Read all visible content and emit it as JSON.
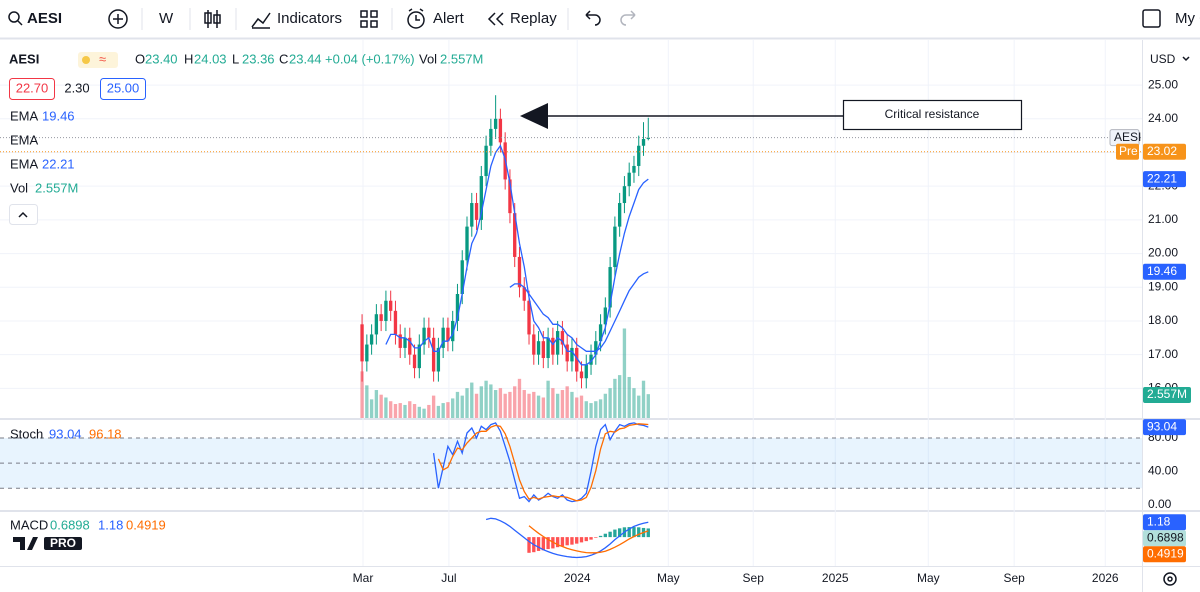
{
  "toolbar": {
    "symbol": "AESI",
    "interval": "W",
    "indicators": "Indicators",
    "alert": "Alert",
    "replay": "Replay",
    "account": "My C"
  },
  "legend": {
    "symbol": "AESI",
    "fields": [
      {
        "k": "O",
        "v": "23.40"
      },
      {
        "k": "H",
        "v": "24.03"
      },
      {
        "k": "L",
        "v": "23.36"
      },
      {
        "k": "C",
        "v": "23.44"
      }
    ],
    "change": "+0.04 (+0.17%)",
    "vol": "Vol",
    "vol_value": "2.557M",
    "bid": "22.70",
    "spread": "2.30",
    "ask": "25.00"
  },
  "currency": "USD",
  "annotation": "Critical resistance",
  "logo": "PRO",
  "chart_data": [
    {
      "type": "candlestick",
      "x": [
        0,
        1,
        2,
        3,
        4,
        5,
        6,
        7,
        8,
        9,
        10,
        11,
        12,
        13,
        14,
        15,
        16,
        17,
        18,
        19,
        20,
        21,
        22,
        23,
        24,
        25,
        26,
        27,
        28,
        29,
        30,
        31,
        32,
        33,
        34,
        35,
        36,
        37,
        38,
        39,
        40,
        41,
        42,
        43,
        44,
        45,
        46,
        47,
        48,
        49,
        50,
        51,
        52,
        53,
        54,
        55,
        56,
        57,
        58,
        59,
        60
      ],
      "open": [
        17.9,
        16.8,
        17.3,
        17.6,
        18.2,
        18.0,
        18.6,
        18.3,
        17.6,
        17.2,
        17.5,
        17.0,
        16.6,
        17.3,
        17.8,
        17.5,
        16.5,
        17.2,
        17.8,
        17.4,
        18.0,
        18.8,
        19.8,
        20.8,
        21.5,
        21.0,
        22.3,
        23.2,
        23.7,
        24.0,
        23.3,
        22.2,
        21.2,
        19.9,
        19.0,
        18.6,
        17.6,
        17.0,
        17.4,
        16.9,
        17.5,
        17.0,
        17.7,
        17.3,
        16.8,
        17.2,
        16.5,
        16.3,
        16.7,
        17.0,
        17.4,
        17.9,
        18.4,
        19.6,
        20.8,
        21.5,
        22.0,
        22.4,
        22.6,
        23.2,
        23.4
      ],
      "high": [
        18.2,
        17.6,
        17.9,
        18.5,
        18.5,
        18.9,
        18.9,
        18.6,
        17.9,
        17.8,
        17.8,
        17.3,
        17.6,
        18.1,
        18.1,
        17.8,
        17.5,
        18.1,
        18.1,
        18.3,
        19.1,
        20.1,
        21.1,
        21.8,
        21.8,
        22.6,
        23.5,
        24.0,
        24.7,
        24.3,
        23.6,
        22.5,
        21.5,
        20.2,
        19.3,
        18.9,
        17.9,
        17.7,
        17.7,
        17.8,
        17.8,
        18.0,
        18.0,
        17.6,
        17.5,
        17.5,
        16.8,
        17.0,
        17.3,
        17.7,
        18.2,
        18.7,
        19.9,
        21.1,
        21.8,
        22.3,
        22.7,
        22.9,
        23.5,
        23.9,
        24.03
      ],
      "low": [
        16.2,
        16.5,
        17.0,
        17.3,
        17.7,
        17.7,
        18.0,
        17.3,
        16.9,
        16.9,
        16.7,
        16.3,
        16.3,
        17.0,
        17.2,
        16.2,
        16.2,
        16.9,
        17.1,
        17.1,
        17.7,
        18.5,
        19.5,
        20.5,
        20.7,
        20.7,
        22.0,
        22.9,
        23.4,
        23.0,
        21.9,
        20.9,
        19.6,
        18.7,
        18.3,
        17.3,
        16.7,
        16.7,
        16.6,
        16.6,
        16.7,
        16.7,
        17.0,
        16.5,
        16.5,
        16.2,
        16.0,
        16.0,
        16.4,
        16.7,
        17.1,
        17.6,
        18.1,
        19.3,
        20.5,
        21.2,
        21.7,
        22.1,
        22.3,
        22.9,
        23.36
      ],
      "close": [
        16.8,
        17.3,
        17.6,
        18.2,
        18.0,
        18.6,
        18.3,
        17.6,
        17.2,
        17.5,
        17.0,
        16.6,
        17.3,
        17.8,
        17.5,
        16.5,
        17.2,
        17.8,
        17.4,
        18.0,
        18.8,
        19.8,
        20.8,
        21.5,
        21.0,
        22.3,
        23.2,
        23.7,
        24.0,
        23.3,
        22.2,
        21.2,
        19.9,
        19.0,
        18.6,
        17.6,
        17.0,
        17.4,
        16.9,
        17.5,
        17.0,
        17.7,
        17.3,
        16.8,
        17.2,
        16.5,
        16.3,
        16.7,
        17.0,
        17.4,
        17.9,
        18.4,
        19.6,
        20.8,
        21.5,
        22.0,
        22.4,
        22.6,
        23.2,
        23.4,
        23.44
      ],
      "up_color": "#089981",
      "down_color": "#f23645",
      "xlim": [
        -75.9,
        163.5
      ],
      "xticks": [
        {
          "value": 0.2,
          "label": "Mar"
        },
        {
          "value": 18.2,
          "label": "Jul"
        },
        {
          "value": 45.1,
          "label": "2024"
        },
        {
          "value": 64.2,
          "label": "May"
        },
        {
          "value": 82,
          "label": "Sep"
        },
        {
          "value": 99.2,
          "label": "2025"
        },
        {
          "value": 118.7,
          "label": "May"
        },
        {
          "value": 136.7,
          "label": "Sep"
        },
        {
          "value": 155.8,
          "label": "2026"
        }
      ],
      "ylim": [
        15.12,
        26.19
      ],
      "yticks": [
        {
          "value": 16,
          "label": "16.00"
        },
        {
          "value": 17,
          "label": "17.00"
        },
        {
          "value": 18,
          "label": "18.00"
        },
        {
          "value": 19,
          "label": "19.00"
        },
        {
          "value": 20,
          "label": "20.00"
        },
        {
          "value": 21,
          "label": "21.00"
        },
        {
          "value": 22,
          "label": "22.00"
        },
        {
          "value": 23,
          "label": "23.00"
        },
        {
          "value": 24,
          "label": "24.00"
        },
        {
          "value": 25,
          "label": "25.00"
        }
      ],
      "grid": true,
      "series": [
        {
          "name": "EMA",
          "color": "#2962ff",
          "values": [
            null,
            null,
            null,
            null,
            null,
            null,
            null,
            null,
            null,
            null,
            null,
            null,
            null,
            null,
            null,
            null,
            null,
            null,
            null,
            null,
            null,
            null,
            null,
            null,
            null,
            null,
            null,
            null,
            null,
            null,
            null,
            19.0,
            19.1,
            19.1,
            19.0,
            18.8,
            18.6,
            18.4,
            18.2,
            18.1,
            17.9,
            17.9,
            17.8,
            17.6,
            17.5,
            17.3,
            17.2,
            17.1,
            17.1,
            17.1,
            17.2,
            17.4,
            17.7,
            18.0,
            18.3,
            18.6,
            18.9,
            19.1,
            19.3,
            19.4,
            19.46
          ]
        },
        {
          "name": "EMA",
          "color": "#2962ff",
          "values": [
            null,
            null,
            null,
            null,
            null,
            17.3,
            17.6,
            17.6,
            17.5,
            17.5,
            17.4,
            17.2,
            17.2,
            17.4,
            17.5,
            17.1,
            17.1,
            17.4,
            17.4,
            17.6,
            18.1,
            18.8,
            19.6,
            20.3,
            20.6,
            21.2,
            21.9,
            22.6,
            23.0,
            23.2,
            22.8,
            22.1,
            21.2,
            20.3,
            19.6,
            18.7,
            18.0,
            17.8,
            17.5,
            17.5,
            17.3,
            17.5,
            17.4,
            17.1,
            17.1,
            16.9,
            16.7,
            16.7,
            16.8,
            17.0,
            17.4,
            17.8,
            18.5,
            19.3,
            20.0,
            20.6,
            21.1,
            21.5,
            21.9,
            22.1,
            22.21
          ]
        }
      ],
      "hidden_series": [
        {
          "name": "EMA"
        }
      ],
      "volume": {
        "name": "Vol",
        "vlim": [
          0,
          40
        ],
        "up_color": "rgba(8,153,129,0.45)",
        "down_color": "rgba(242,54,69,0.45)",
        "values": [
          5.0,
          3.5,
          2.0,
          3.0,
          2.5,
          2.2,
          1.8,
          1.5,
          1.6,
          1.4,
          1.8,
          1.5,
          1.2,
          1.0,
          1.4,
          2.4,
          1.3,
          1.6,
          1.7,
          2.1,
          2.8,
          2.4,
          3.2,
          3.8,
          2.6,
          3.4,
          4.0,
          3.6,
          3.0,
          3.2,
          2.6,
          2.8,
          3.4,
          4.2,
          3.0,
          2.6,
          2.8,
          2.4,
          2.2,
          4.0,
          3.2,
          2.6,
          3.0,
          3.4,
          2.8,
          2.2,
          2.4,
          1.8,
          1.6,
          1.8,
          2.0,
          2.6,
          3.2,
          4.2,
          4.6,
          9.6,
          4.4,
          3.2,
          2.4,
          4.0,
          2.557
        ],
        "value_labels": [
          null,
          null,
          null,
          null,
          null,
          null,
          null,
          null,
          null,
          null,
          null,
          null,
          null,
          null,
          null,
          null,
          null,
          null,
          null,
          null,
          null,
          null,
          null,
          null,
          null,
          null,
          null,
          null,
          null,
          null,
          null,
          null,
          null,
          null,
          null,
          null,
          null,
          null,
          null,
          null,
          null,
          null,
          null,
          null,
          null,
          null,
          null,
          null,
          null,
          null,
          null,
          null,
          null,
          null,
          null,
          null,
          null,
          null,
          null,
          null,
          "2.557M"
        ]
      },
      "last_price": {
        "label": "AESI",
        "value": 23.44
      },
      "premarket": {
        "label": "Pre",
        "value": 23.02,
        "color": "#f7931a"
      }
    },
    {
      "type": "line",
      "title": "Stoch",
      "ylim": [
        -6,
        101.5
      ],
      "yticks": [
        {
          "value": 0,
          "label": "0.00"
        },
        {
          "value": 40,
          "label": "40.00"
        },
        {
          "value": 80,
          "label": "80.00"
        }
      ],
      "band": [
        20,
        80
      ],
      "levels": [
        80,
        50,
        20
      ],
      "series": [
        {
          "color": "#2962ff",
          "values": [
            null,
            null,
            null,
            null,
            null,
            null,
            null,
            null,
            null,
            null,
            null,
            null,
            null,
            null,
            null,
            62,
            20,
            45,
            70,
            60,
            76,
            62,
            86,
            92,
            80,
            94,
            90,
            96,
            98,
            88,
            70,
            52,
            30,
            8,
            10,
            4,
            12,
            6,
            9,
            14,
            10,
            8,
            12,
            6,
            4,
            5,
            8,
            14,
            40,
            70,
            90,
            96,
            78,
            88,
            96,
            94,
            97,
            98,
            96,
            95,
            93.04
          ]
        },
        {
          "color": "#ff6d00",
          "values": [
            null,
            null,
            null,
            null,
            null,
            null,
            null,
            null,
            null,
            null,
            null,
            null,
            null,
            null,
            null,
            null,
            55,
            42,
            45,
            58,
            68,
            66,
            74,
            80,
            86,
            88,
            88,
            93,
            95,
            94,
            85,
            70,
            50,
            30,
            16,
            7,
            9,
            7,
            9,
            10,
            11,
            10,
            10,
            9,
            7,
            5,
            6,
            9,
            21,
            41,
            67,
            85,
            88,
            87,
            91,
            92,
            95,
            96,
            97,
            96.5,
            96.18
          ]
        }
      ]
    },
    {
      "type": "macd",
      "title": "MACD",
      "ylim": [
        -2.3,
        2.0
      ],
      "histogram": {
        "up_color": "#26a69a",
        "down_color": "#ff5252",
        "values": [
          null,
          null,
          null,
          null,
          null,
          null,
          null,
          null,
          null,
          null,
          null,
          null,
          null,
          null,
          null,
          null,
          null,
          null,
          null,
          null,
          null,
          null,
          null,
          null,
          null,
          null,
          null,
          null,
          null,
          null,
          null,
          null,
          null,
          null,
          null,
          -1.25,
          -1.2,
          -1.1,
          -1.05,
          -0.95,
          -0.9,
          -0.8,
          -0.73,
          -0.65,
          -0.6,
          -0.52,
          -0.42,
          -0.32,
          -0.2,
          -0.05,
          0.1,
          0.27,
          0.43,
          0.6,
          0.7,
          0.78,
          0.8,
          0.8,
          0.78,
          0.73,
          0.6898
        ]
      },
      "series": [
        {
          "color": "#2962ff",
          "values": [
            null,
            null,
            null,
            null,
            null,
            null,
            null,
            null,
            null,
            null,
            null,
            null,
            null,
            null,
            null,
            null,
            null,
            null,
            null,
            null,
            null,
            null,
            null,
            null,
            null,
            null,
            1.4,
            1.5,
            1.45,
            1.3,
            1.1,
            0.85,
            0.55,
            0.25,
            -0.05,
            -0.35,
            -0.6,
            -0.8,
            -1.0,
            -1.15,
            -1.3,
            -1.4,
            -1.48,
            -1.55,
            -1.6,
            -1.62,
            -1.6,
            -1.55,
            -1.45,
            -1.3,
            -1.1,
            -0.85,
            -0.55,
            -0.2,
            0.1,
            0.4,
            0.65,
            0.85,
            1.0,
            1.1,
            1.18
          ]
        },
        {
          "color": "#ff6d00",
          "values": [
            null,
            null,
            null,
            null,
            null,
            null,
            null,
            null,
            null,
            null,
            null,
            null,
            null,
            null,
            null,
            null,
            null,
            null,
            null,
            null,
            null,
            null,
            null,
            null,
            null,
            null,
            null,
            null,
            null,
            null,
            null,
            null,
            null,
            null,
            null,
            0.9,
            0.6,
            0.3,
            0.05,
            -0.2,
            -0.4,
            -0.6,
            -0.75,
            -0.9,
            -1.0,
            -1.1,
            -1.18,
            -1.23,
            -1.25,
            -1.25,
            -1.2,
            -1.12,
            -0.98,
            -0.8,
            -0.6,
            -0.38,
            -0.15,
            0.05,
            0.22,
            0.37,
            0.4919
          ]
        }
      ]
    }
  ]
}
